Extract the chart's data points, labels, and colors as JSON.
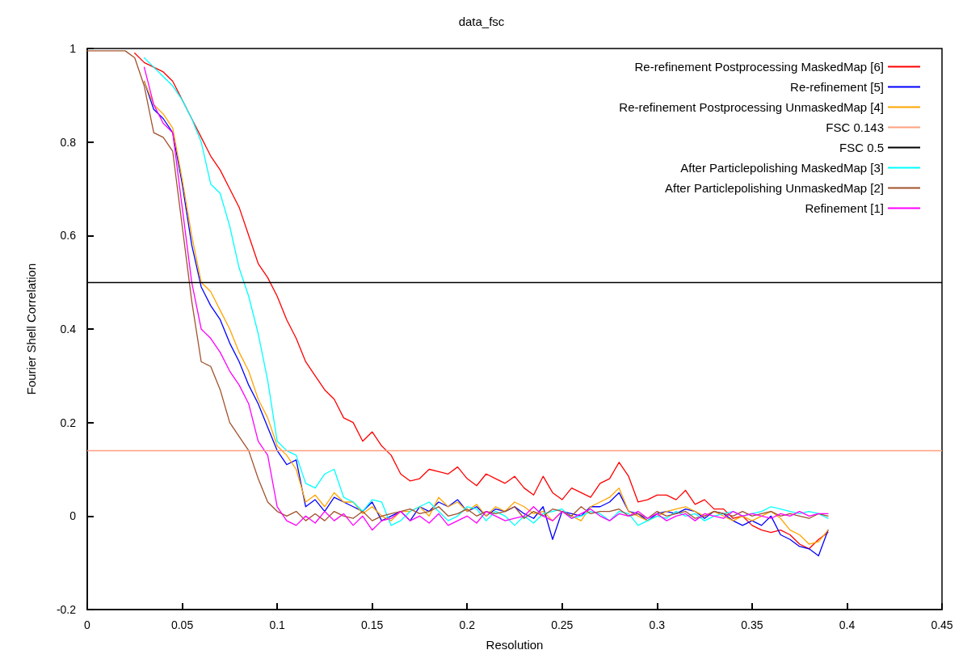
{
  "chart_data": {
    "type": "line",
    "title": "data_fsc",
    "xlabel": "Resolution",
    "ylabel": "Fourier Shell Correlation",
    "xlim": [
      0,
      0.45
    ],
    "ylim": [
      -0.2,
      1
    ],
    "xticks": [
      0,
      0.05,
      0.1,
      0.15,
      0.2,
      0.25,
      0.3,
      0.35,
      0.4,
      0.45
    ],
    "yticks": [
      -0.2,
      0,
      0.2,
      0.4,
      0.6,
      0.8,
      1
    ],
    "grid": false,
    "legend": "top right",
    "ref_lines": [
      {
        "axis": "y",
        "value": 0.143,
        "label": "FSC 0.143",
        "color": "#ff9f7f"
      },
      {
        "axis": "y",
        "value": 0.5,
        "label": "FSC 0.5",
        "color": "#000000"
      }
    ],
    "marker": "none",
    "line_style": "solid",
    "x": [
      0,
      0.005,
      0.01,
      0.015,
      0.02,
      0.025,
      0.03,
      0.035,
      0.04,
      0.045,
      0.05,
      0.055,
      0.06,
      0.065,
      0.07,
      0.075,
      0.08,
      0.085,
      0.09,
      0.095,
      0.1,
      0.105,
      0.11,
      0.115,
      0.12,
      0.125,
      0.13,
      0.135,
      0.14,
      0.145,
      0.15,
      0.155,
      0.16,
      0.165,
      0.17,
      0.175,
      0.18,
      0.185,
      0.19,
      0.195,
      0.2,
      0.205,
      0.21,
      0.215,
      0.22,
      0.225,
      0.23,
      0.235,
      0.24,
      0.245,
      0.25,
      0.255,
      0.26,
      0.265,
      0.27,
      0.275,
      0.28,
      0.285,
      0.29,
      0.295,
      0.3,
      0.305,
      0.31,
      0.315,
      0.32,
      0.325,
      0.33,
      0.335,
      0.34,
      0.345,
      0.35,
      0.355,
      0.36,
      0.365,
      0.37,
      0.375,
      0.38,
      0.385,
      0.39
    ],
    "series": [
      {
        "name": "Re-refinement Postprocessing MaskedMap [6]",
        "color": "#ff0000",
        "values": [
          null,
          null,
          null,
          null,
          null,
          0.99,
          0.97,
          0.96,
          0.95,
          0.93,
          0.89,
          0.85,
          0.81,
          0.77,
          0.74,
          0.7,
          0.66,
          0.6,
          0.54,
          0.51,
          0.47,
          0.42,
          0.38,
          0.33,
          0.3,
          0.27,
          0.25,
          0.21,
          0.2,
          0.16,
          0.18,
          0.15,
          0.13,
          0.09,
          0.075,
          0.08,
          0.1,
          0.095,
          0.09,
          0.105,
          0.08,
          0.065,
          0.09,
          0.08,
          0.07,
          0.085,
          0.06,
          0.045,
          0.085,
          0.05,
          0.035,
          0.06,
          0.05,
          0.04,
          0.07,
          0.08,
          0.115,
          0.085,
          0.03,
          0.035,
          0.045,
          0.045,
          0.035,
          0.055,
          0.025,
          0.035,
          0.015,
          0.015,
          -0.005,
          0,
          -0.02,
          -0.03,
          -0.035,
          -0.03,
          -0.04,
          -0.06,
          -0.07,
          -0.05,
          -0.035
        ]
      },
      {
        "name": "Re-refinement [5]",
        "color": "#0000ff",
        "values": [
          null,
          null,
          null,
          null,
          null,
          null,
          0.93,
          0.87,
          0.85,
          0.82,
          0.71,
          0.58,
          0.49,
          0.45,
          0.42,
          0.37,
          0.33,
          0.28,
          0.24,
          0.19,
          0.14,
          0.11,
          0.12,
          0.02,
          0.035,
          0.01,
          0.04,
          0.03,
          0.02,
          0.01,
          0.03,
          -0.01,
          0,
          0.01,
          -0.01,
          0.02,
          0.01,
          0.03,
          0.02,
          0.035,
          0.01,
          0.02,
          0,
          0.015,
          0.01,
          0.02,
          0.005,
          -0.005,
          0.02,
          -0.05,
          0.01,
          0.005,
          0,
          0.02,
          0.02,
          0.03,
          0.05,
          0.01,
          0.005,
          -0.01,
          0.005,
          0.01,
          0.005,
          0.015,
          0.01,
          -0.005,
          0.01,
          0.005,
          -0.01,
          -0.02,
          -0.01,
          -0.02,
          0,
          -0.04,
          -0.05,
          -0.065,
          -0.07,
          -0.085,
          -0.03
        ]
      },
      {
        "name": "Re-refinement Postprocessing UnmaskedMap [4]",
        "color": "#ffa500",
        "values": [
          null,
          null,
          null,
          null,
          null,
          null,
          0.93,
          0.88,
          0.86,
          0.83,
          0.72,
          0.6,
          0.5,
          0.48,
          0.44,
          0.4,
          0.35,
          0.31,
          0.25,
          0.21,
          0.15,
          0.13,
          0.1,
          0.03,
          0.045,
          0.02,
          0.05,
          0.03,
          0.03,
          0.005,
          0.02,
          0,
          -0.01,
          0.01,
          0.01,
          0.02,
          0,
          0.04,
          0.02,
          0.03,
          0.01,
          0.025,
          0,
          0.02,
          0.01,
          0.03,
          0.02,
          0.005,
          0.01,
          -0.01,
          0.01,
          0,
          -0.01,
          0.02,
          0.03,
          0.04,
          0.06,
          0.01,
          0,
          -0.01,
          0,
          0.01,
          0.015,
          0.02,
          0.01,
          0,
          0.01,
          0,
          -0.01,
          0,
          -0.01,
          0,
          0.01,
          -0.005,
          -0.03,
          -0.04,
          -0.06,
          -0.055,
          -0.03
        ]
      },
      {
        "name": "After Particlepolishing MaskedMap [3]",
        "color": "#00ffff",
        "values": [
          null,
          null,
          null,
          null,
          null,
          null,
          0.98,
          0.96,
          0.94,
          0.92,
          0.89,
          0.85,
          0.8,
          0.71,
          0.69,
          0.62,
          0.53,
          0.47,
          0.39,
          0.29,
          0.16,
          0.14,
          0.13,
          0.07,
          0.06,
          0.09,
          0.1,
          0.04,
          0.03,
          0.01,
          0.035,
          0.03,
          -0.02,
          -0.01,
          0.01,
          0.02,
          0.03,
          0.01,
          -0.01,
          0,
          0.02,
          0.015,
          -0.01,
          0.01,
          0,
          -0.02,
          0,
          -0.015,
          0.005,
          0.01,
          0.015,
          -0.005,
          0,
          0.01,
          0.005,
          -0.01,
          0.01,
          0.005,
          -0.02,
          -0.01,
          0,
          -0.005,
          0.01,
          0,
          0.005,
          -0.01,
          0,
          0.005,
          0.01,
          0,
          0.005,
          0.01,
          0.02,
          0.015,
          0.01,
          0.005,
          0.01,
          0.005,
          -0.005
        ]
      },
      {
        "name": "After Particlepolishing UnmaskedMap [2]",
        "color": "#a0522d",
        "values": [
          0.995,
          0.995,
          0.995,
          0.995,
          0.995,
          0.98,
          0.92,
          0.82,
          0.81,
          0.78,
          0.62,
          0.46,
          0.33,
          0.32,
          0.27,
          0.2,
          0.17,
          0.14,
          0.08,
          0.03,
          0.01,
          0,
          0.01,
          -0.01,
          0.005,
          -0.01,
          0.01,
          0,
          -0.005,
          0.01,
          -0.01,
          0,
          0.005,
          0.01,
          0.015,
          0.005,
          0.01,
          0.02,
          0,
          0.005,
          0.015,
          0,
          0.01,
          0.005,
          0.01,
          0.02,
          -0.005,
          0.01,
          0,
          0.015,
          0.01,
          0,
          0.02,
          0.005,
          0.01,
          0.01,
          0.015,
          0,
          0.005,
          -0.005,
          0.01,
          0,
          0.005,
          0.01,
          -0.005,
          0,
          0.01,
          0.005,
          0,
          0.01,
          0,
          0.005,
          0.01,
          0,
          0.005,
          0,
          -0.005,
          0.005,
          0
        ]
      },
      {
        "name": "Refinement [1]",
        "color": "#ff00ff",
        "values": [
          null,
          null,
          null,
          null,
          null,
          null,
          0.96,
          0.88,
          0.84,
          0.82,
          0.66,
          0.5,
          0.4,
          0.38,
          0.35,
          0.31,
          0.28,
          0.24,
          0.16,
          0.13,
          0.02,
          -0.01,
          -0.02,
          0,
          -0.015,
          0.01,
          -0.01,
          0.005,
          -0.02,
          0,
          -0.03,
          -0.01,
          -0.005,
          0.01,
          -0.01,
          0,
          -0.015,
          0.005,
          -0.02,
          -0.01,
          0,
          -0.015,
          0.01,
          0,
          -0.01,
          -0.005,
          0,
          0.02,
          0,
          -0.01,
          0.01,
          -0.005,
          0.005,
          0.015,
          0,
          -0.01,
          0.005,
          0,
          0.01,
          -0.005,
          0.005,
          -0.01,
          0,
          0.005,
          -0.01,
          0.005,
          0,
          -0.005,
          0.01,
          0,
          0.005,
          0,
          -0.005,
          0.005,
          0,
          0.01,
          0,
          0.005,
          0.005
        ]
      }
    ]
  }
}
